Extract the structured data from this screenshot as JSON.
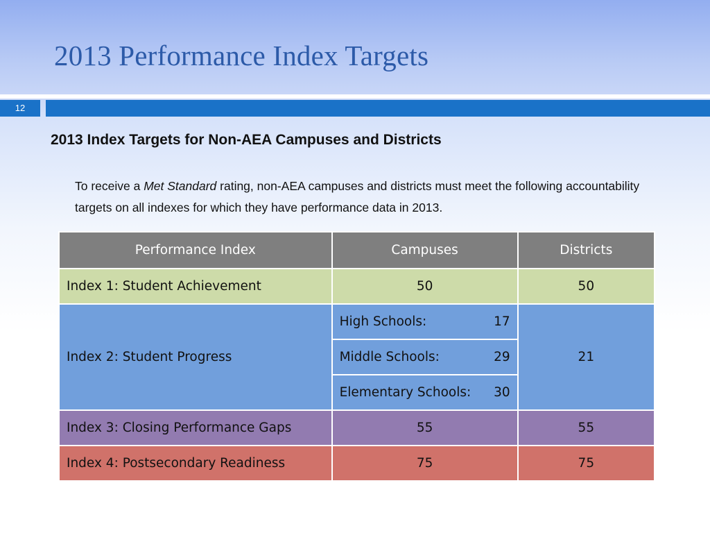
{
  "slide": {
    "title": "2013 Performance Index Targets",
    "page_number": "12",
    "subtitle": "2013 Index Targets for Non-AEA Campuses and Districts",
    "intro": {
      "before": "To receive a ",
      "emphasis": "Met Standard",
      "after": " rating, non-AEA campuses and districts must meet the following accountability targets on all indexes for which they have performance data in 2013."
    }
  },
  "table": {
    "headers": [
      "Performance Index",
      "Campuses",
      "Districts"
    ],
    "index1": {
      "label": "Index 1: Student Achievement",
      "campuses": "50",
      "districts": "50"
    },
    "index2": {
      "label": "Index 2: Student Progress",
      "campuses": [
        {
          "level": "High Schools:",
          "value": "17"
        },
        {
          "level": "Middle Schools:",
          "value": "29"
        },
        {
          "level": "Elementary Schools:",
          "value": "30"
        }
      ],
      "districts": "21"
    },
    "index3": {
      "label": "Index 3: Closing Performance Gaps",
      "campuses": "55",
      "districts": "55"
    },
    "index4": {
      "label": "Index 4: Postsecondary Readiness",
      "campuses": "75",
      "districts": "75"
    }
  },
  "colors": {
    "title": "#2c5aa8",
    "accent_bar": "#1a72c8",
    "header_row": "#7f7f7f",
    "index1_row": "#cddba9",
    "index2_row": "#719fdc",
    "index3_row": "#927bb0",
    "index4_row": "#d0726a"
  }
}
